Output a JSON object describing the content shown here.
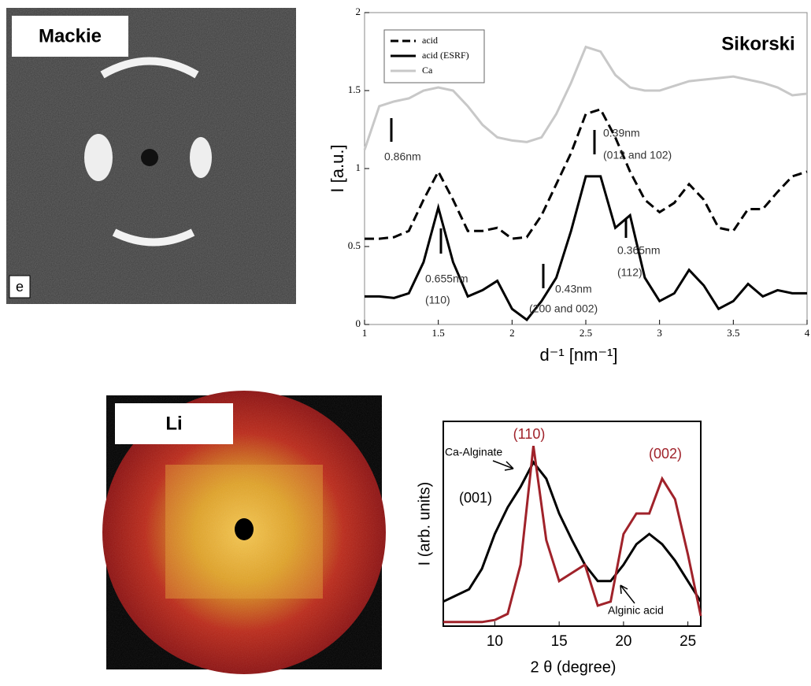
{
  "images": [
    {
      "label": "Mackie",
      "corner_label": "e"
    },
    {
      "label": "Li"
    }
  ],
  "chart_data": [
    {
      "type": "line",
      "label": "Sikorski",
      "ylabel": "I [a.u.]",
      "xlabel": "d⁻¹ [nm⁻¹]",
      "x": [
        1.0,
        1.1,
        1.2,
        1.3,
        1.4,
        1.5,
        1.6,
        1.7,
        1.8,
        1.9,
        2.0,
        2.1,
        2.2,
        2.3,
        2.4,
        2.5,
        2.6,
        2.7,
        2.8,
        2.9,
        3.0,
        3.1,
        3.2,
        3.3,
        3.4,
        3.5,
        3.6,
        3.7,
        3.8,
        3.9,
        4.0
      ],
      "series": [
        {
          "name": "acid",
          "color": "#000000",
          "dashed": true,
          "values": [
            0.55,
            0.55,
            0.56,
            0.6,
            0.8,
            0.98,
            0.8,
            0.6,
            0.6,
            0.62,
            0.55,
            0.56,
            0.7,
            0.9,
            1.1,
            1.35,
            1.38,
            1.2,
            0.98,
            0.8,
            0.72,
            0.78,
            0.9,
            0.8,
            0.62,
            0.6,
            0.74,
            0.74,
            0.85,
            0.95,
            0.98
          ]
        },
        {
          "name": "acid (ESRF)",
          "color": "#000000",
          "values": [
            0.18,
            0.18,
            0.17,
            0.2,
            0.4,
            0.75,
            0.4,
            0.18,
            0.22,
            0.28,
            0.1,
            0.03,
            0.15,
            0.3,
            0.6,
            0.95,
            0.95,
            0.62,
            0.7,
            0.3,
            0.15,
            0.2,
            0.35,
            0.25,
            0.1,
            0.15,
            0.26,
            0.18,
            0.22,
            0.2,
            0.2
          ]
        },
        {
          "name": "Ca",
          "color": "#c8c8c8",
          "values": [
            1.12,
            1.4,
            1.43,
            1.45,
            1.5,
            1.52,
            1.5,
            1.4,
            1.28,
            1.2,
            1.18,
            1.17,
            1.2,
            1.35,
            1.55,
            1.78,
            1.75,
            1.6,
            1.52,
            1.5,
            1.5,
            1.53,
            1.56,
            1.57,
            1.58,
            1.59,
            1.57,
            1.55,
            1.52,
            1.47,
            1.48
          ]
        }
      ],
      "xlim": [
        1,
        4
      ],
      "xticks": [
        1,
        1.5,
        2,
        2.5,
        3,
        3.5,
        4
      ],
      "ylim": [
        0,
        2
      ],
      "yticks": [
        0,
        0.5,
        1,
        1.5,
        2
      ],
      "legend": "upper left",
      "annotations": [
        "0.86nm",
        "0.39nm",
        "(012 and 102)",
        "0.655nm",
        "(110)",
        "0.43nm",
        "(200 and 002)",
        "0.365nm",
        "(112)"
      ]
    },
    {
      "type": "line",
      "ylabel": "I (arb. units)",
      "xlabel": "2 θ (degree)",
      "x": [
        6,
        7,
        8,
        9,
        10,
        11,
        12,
        13,
        14,
        15,
        16,
        17,
        18,
        19,
        20,
        21,
        22,
        23,
        24,
        25,
        26
      ],
      "series": [
        {
          "name": "Ca-Alginate",
          "color": "#000000",
          "values": [
            0.12,
            0.15,
            0.18,
            0.28,
            0.45,
            0.58,
            0.68,
            0.8,
            0.72,
            0.55,
            0.42,
            0.3,
            0.22,
            0.22,
            0.3,
            0.4,
            0.45,
            0.4,
            0.32,
            0.22,
            0.12
          ]
        },
        {
          "name": "Alginic acid",
          "color": "#a0222a",
          "values": [
            0.02,
            0.02,
            0.02,
            0.02,
            0.03,
            0.06,
            0.3,
            0.88,
            0.42,
            0.22,
            0.26,
            0.3,
            0.1,
            0.12,
            0.45,
            0.55,
            0.55,
            0.72,
            0.62,
            0.35,
            0.05
          ]
        }
      ],
      "xlim": [
        6,
        26
      ],
      "xticks": [
        10,
        15,
        20,
        25
      ],
      "ylim": [
        0,
        1
      ],
      "annotations": [
        "(110)",
        "(002)",
        "(001)"
      ]
    }
  ]
}
